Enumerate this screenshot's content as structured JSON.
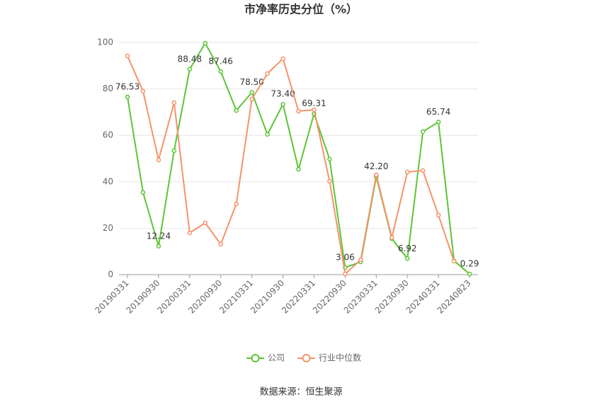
{
  "chart_data": {
    "type": "line",
    "title": "市净率历史分位（%）",
    "source": "数据来源：恒生聚源",
    "categories": [
      "20190331",
      null,
      "20190930",
      null,
      "20200331",
      null,
      "20200930",
      null,
      "20210331",
      null,
      "20210930",
      null,
      "20220331",
      null,
      "20220930",
      null,
      "20230331",
      null,
      "20230930",
      null,
      "20240331",
      null,
      "20240823"
    ],
    "series": [
      {
        "name": "公司",
        "color": "#5cc536",
        "values": [
          76.53,
          35.4,
          12.24,
          53.4,
          88.48,
          99.7,
          87.46,
          70.7,
          78.5,
          60.4,
          73.4,
          45.4,
          69.31,
          49.7,
          3.06,
          5.5,
          42.2,
          15.5,
          6.92,
          61.6,
          65.74,
          6.0,
          0.29
        ],
        "value_labels": [
          "76.53",
          null,
          "12.24",
          null,
          "88.48",
          null,
          "87.46",
          null,
          "78.50",
          null,
          "73.40",
          null,
          "69.31",
          null,
          "3.06",
          null,
          "42.20",
          null,
          "6.92",
          null,
          "65.74",
          null,
          "0.29"
        ]
      },
      {
        "name": "行业中位数",
        "color": "#f5936a",
        "values": [
          94.2,
          79.0,
          49.4,
          74.1,
          18.0,
          22.3,
          13.1,
          30.5,
          75.6,
          86.6,
          93.0,
          70.4,
          71.0,
          40.2,
          0.3,
          6.4,
          43.0,
          15.9,
          44.2,
          44.8,
          25.6,
          5.8,
          null
        ]
      }
    ],
    "ylim": [
      0,
      100
    ],
    "yticks": [
      0,
      20,
      40,
      60,
      80,
      100
    ],
    "grid": true,
    "legend": "bottom"
  }
}
